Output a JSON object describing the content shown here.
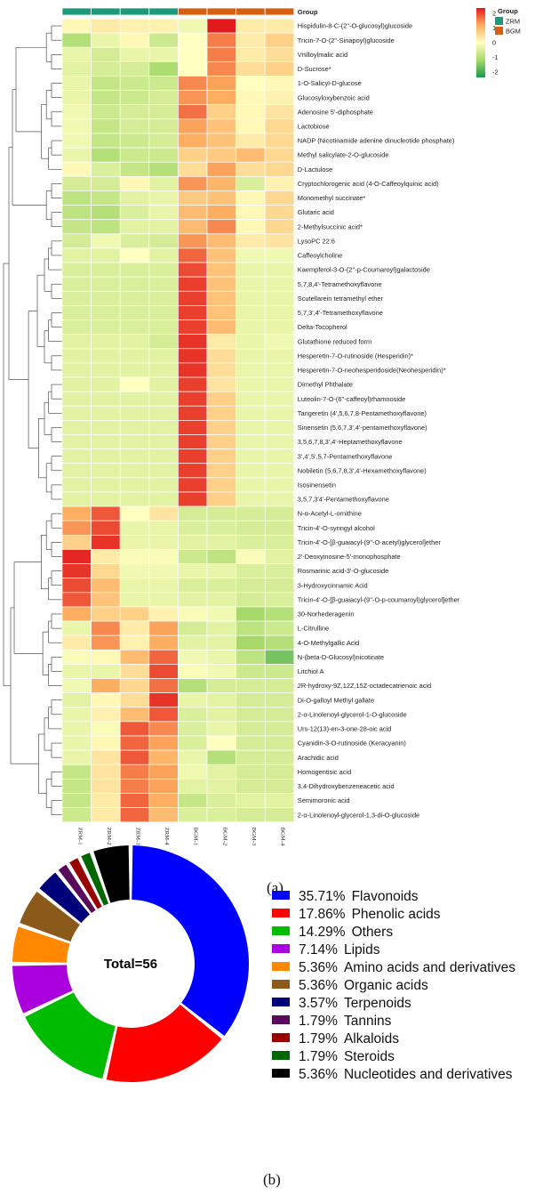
{
  "chart_data": [
    {
      "type": "heatmap",
      "panel_label": "(a)",
      "group_header": "Group",
      "samples": [
        "ZRM-1",
        "ZRM-2",
        "ZRM-3",
        "ZRM-4",
        "BGM-1",
        "BGM-2",
        "BGM-3",
        "BGM-4"
      ],
      "sample_groups": [
        "ZRM",
        "ZRM",
        "ZRM",
        "ZRM",
        "BGM",
        "BGM",
        "BGM",
        "BGM"
      ],
      "legend": {
        "title": "Group",
        "groups": [
          {
            "name": "ZRM",
            "color": "#1a9a79"
          },
          {
            "name": "BGM",
            "color": "#d95f0e"
          }
        ],
        "scale_ticks": [
          "2",
          "1",
          "0",
          "-1",
          "-2"
        ],
        "range": [
          -2.4,
          2.4
        ],
        "colors": [
          "#1a9850",
          "#a6d96a",
          "#ffffbf",
          "#fdae61",
          "#e31a1c"
        ]
      },
      "rows": [
        {
          "name": "Hispidulin-8-C-(2''-O-glucosyl)glucoside",
          "values": [
            0.1,
            0.3,
            0.2,
            0.2,
            -0.2,
            2.4,
            0.3,
            0.3
          ]
        },
        {
          "name": "Tricin-7-O-(2''-Sinapoyl)glucoside",
          "values": [
            -1.0,
            -0.3,
            0.1,
            -0.7,
            0.0,
            1.6,
            0.3,
            0.7
          ]
        },
        {
          "name": "Vnilloylmalic acid",
          "values": [
            -0.3,
            -0.6,
            -0.3,
            -0.3,
            0.0,
            1.6,
            0.3,
            0.5
          ]
        },
        {
          "name": "D-Sucrose*",
          "values": [
            -0.4,
            -0.6,
            -0.6,
            -1.1,
            0.0,
            1.5,
            0.5,
            0.7
          ]
        },
        {
          "name": "1-O-Salicyl-D-glucose",
          "values": [
            -0.3,
            -0.8,
            -0.7,
            -0.7,
            1.5,
            1.3,
            0.0,
            0.1
          ]
        },
        {
          "name": "Glucosyloxybenzoic acid",
          "values": [
            -0.3,
            -0.8,
            -0.7,
            -0.6,
            1.4,
            1.2,
            0.1,
            0.2
          ]
        },
        {
          "name": "Adenosine 5'-diphosphate",
          "values": [
            -0.2,
            -0.7,
            -0.6,
            -0.6,
            1.7,
            0.7,
            0.1,
            0.4
          ]
        },
        {
          "name": "Lactobiose",
          "values": [
            -0.2,
            -0.8,
            -0.6,
            -0.6,
            1.3,
            0.9,
            0.1,
            0.6
          ]
        },
        {
          "name": "NADP (Nicotinamide adenine dinucleotide phosphate)",
          "values": [
            -0.2,
            -0.8,
            -0.7,
            -0.6,
            1.2,
            0.9,
            0.3,
            0.6
          ]
        },
        {
          "name": "Methyl salicylate-2-O-glucoside",
          "values": [
            -0.3,
            -1.0,
            -0.7,
            -0.7,
            0.7,
            0.8,
            1.0,
            0.6
          ]
        },
        {
          "name": "D-Lactulose",
          "values": [
            0.1,
            -0.5,
            -0.8,
            -1.0,
            0.5,
            1.3,
            0.5,
            0.6
          ]
        },
        {
          "name": "Cryptochlorogenic acid (4-O-Caffeoylquinic acid)",
          "values": [
            -0.6,
            -0.6,
            0.1,
            -0.4,
            1.4,
            1.1,
            -0.5,
            0.2
          ]
        },
        {
          "name": "Monomethyl succinate*",
          "values": [
            -0.9,
            -0.8,
            -0.4,
            -0.3,
            0.8,
            0.9,
            0.1,
            0.6
          ]
        },
        {
          "name": "Glutaric acid",
          "values": [
            -0.9,
            -1.0,
            -0.5,
            -0.3,
            1.0,
            1.2,
            0.1,
            0.6
          ]
        },
        {
          "name": "2-Methylsuccinic acid*",
          "values": [
            -0.8,
            -0.9,
            -0.4,
            -0.4,
            1.0,
            1.5,
            0.1,
            0.6
          ]
        },
        {
          "name": "LysoPC 22:6",
          "values": [
            -0.6,
            -0.2,
            -0.5,
            -0.6,
            1.4,
            1.0,
            0.3,
            0.4
          ]
        },
        {
          "name": "Caffeoylcholine",
          "values": [
            -0.4,
            -0.4,
            0.0,
            -0.4,
            1.8,
            0.9,
            -0.2,
            -0.2
          ]
        },
        {
          "name": "Kaempferol-3-O-(2''-p-Coumaroyl)galactoside",
          "values": [
            -0.5,
            -0.5,
            -0.5,
            -0.5,
            2.0,
            0.9,
            -0.3,
            -0.3
          ]
        },
        {
          "name": "5,7,8,4'-Tetramethoxyflavone",
          "values": [
            -0.5,
            -0.5,
            -0.5,
            -0.5,
            2.1,
            0.9,
            -0.3,
            -0.3
          ]
        },
        {
          "name": "Scutellarein tetramethyl ether",
          "values": [
            -0.5,
            -0.5,
            -0.5,
            -0.5,
            2.1,
            0.9,
            -0.3,
            -0.3
          ]
        },
        {
          "name": "5,7,3',4'-Tetramethoxyflavone",
          "values": [
            -0.5,
            -0.5,
            -0.5,
            -0.5,
            2.1,
            0.9,
            -0.3,
            -0.3
          ]
        },
        {
          "name": "Delta-Tocopherol",
          "values": [
            -0.5,
            -0.5,
            -0.5,
            -0.5,
            2.1,
            1.0,
            -0.3,
            -0.3
          ]
        },
        {
          "name": "Glutathione reduced form",
          "values": [
            -0.4,
            -0.4,
            -0.4,
            -0.6,
            2.2,
            0.3,
            -0.3,
            -0.2
          ]
        },
        {
          "name": "Hesperetin-7-O-rutinoside (Hesperidin)*",
          "values": [
            -0.4,
            -0.4,
            -0.4,
            -0.4,
            2.2,
            0.5,
            -0.3,
            -0.3
          ]
        },
        {
          "name": "Hesperetin-7-O-neohesperidoside(Neohesperidin)*",
          "values": [
            -0.4,
            -0.4,
            -0.4,
            -0.4,
            2.2,
            0.5,
            -0.3,
            -0.3
          ]
        },
        {
          "name": "Dimethyl Phthalate",
          "values": [
            -0.4,
            -0.4,
            0.0,
            -0.4,
            2.1,
            0.4,
            -0.3,
            -0.3
          ]
        },
        {
          "name": "Luteolin-7-O-(6''-caffeoyl)rhamnoside",
          "values": [
            -0.4,
            -0.4,
            -0.4,
            -0.4,
            2.1,
            0.7,
            -0.3,
            -0.3
          ]
        },
        {
          "name": "Tangeretin (4',5,6,7,8-Pentamethoxyflavone)",
          "values": [
            -0.4,
            -0.4,
            -0.4,
            -0.4,
            2.1,
            0.7,
            -0.3,
            -0.3
          ]
        },
        {
          "name": "Sinensetin (5,6,7,3',4'-pentamethoxyflavone)",
          "values": [
            -0.4,
            -0.4,
            -0.4,
            -0.4,
            2.1,
            0.7,
            -0.3,
            -0.3
          ]
        },
        {
          "name": "3,5,6,7,8,3',4'-Heptamethoxyflavone",
          "values": [
            -0.4,
            -0.4,
            -0.4,
            -0.4,
            2.1,
            0.7,
            -0.3,
            -0.3
          ]
        },
        {
          "name": "3',4',5',5,7-Pentamethoxyflavone",
          "values": [
            -0.4,
            -0.4,
            -0.4,
            -0.4,
            2.1,
            0.7,
            -0.3,
            -0.3
          ]
        },
        {
          "name": "Nobiletin (5,6,7,8,3',4'-Hexamethoxyflavone)",
          "values": [
            -0.4,
            -0.4,
            -0.4,
            -0.4,
            2.1,
            0.7,
            -0.3,
            -0.3
          ]
        },
        {
          "name": "Isosinensetin",
          "values": [
            -0.4,
            -0.4,
            -0.4,
            -0.4,
            2.1,
            0.7,
            -0.3,
            -0.3
          ]
        },
        {
          "name": "3,5,7,3'4'-Pentamethoxyflavone",
          "values": [
            -0.4,
            -0.4,
            -0.4,
            -0.4,
            2.1,
            0.7,
            -0.3,
            -0.3
          ]
        },
        {
          "name": "N-α-Acetyl-L-ornithine",
          "values": [
            1.2,
            1.9,
            0.0,
            0.4,
            -0.6,
            -0.6,
            -0.6,
            -0.6
          ]
        },
        {
          "name": "Tricin-4'-O-syringyl alcohol",
          "values": [
            1.4,
            2.0,
            -0.3,
            -0.3,
            -0.5,
            -0.5,
            -0.6,
            -0.6
          ]
        },
        {
          "name": "Tricin-4'-O-[β-guaiacyl-(9''-O-acetyl)glycerol]ether",
          "values": [
            0.7,
            2.2,
            -0.3,
            -0.3,
            -0.4,
            -0.4,
            -0.5,
            -0.5
          ]
        },
        {
          "name": "2'-Deoxyinosine-5'-monophosphate",
          "values": [
            2.3,
            0.3,
            -0.1,
            -0.1,
            -0.7,
            -0.9,
            -0.1,
            -0.4
          ]
        },
        {
          "name": "Rosmarinic acid-3'-O-glucoside",
          "values": [
            2.2,
            0.6,
            -0.2,
            -0.2,
            -0.3,
            -0.3,
            -0.5,
            -0.5
          ]
        },
        {
          "name": "3-Hydroxycinnamic Acid",
          "values": [
            2.0,
            1.0,
            -0.3,
            -0.3,
            -0.5,
            -0.5,
            -0.6,
            -0.6
          ]
        },
        {
          "name": "Tricin-4'-O-[β-guaiacyl-(9''-O-p-coumaroyl)glycerol]ether",
          "values": [
            1.9,
            0.9,
            -0.3,
            -0.3,
            -0.4,
            -0.4,
            -0.6,
            -0.5
          ]
        },
        {
          "name": "30-Norhederagenin",
          "values": [
            1.2,
            0.7,
            0.7,
            0.2,
            -0.1,
            -0.2,
            -1.2,
            -1.0
          ]
        },
        {
          "name": "L-Citrulline",
          "values": [
            -0.3,
            1.5,
            0.3,
            1.3,
            -0.6,
            -0.4,
            -0.9,
            -0.7
          ]
        },
        {
          "name": "4-O-Methylgallic Acid",
          "values": [
            0.3,
            1.4,
            0.2,
            1.2,
            -0.4,
            -0.4,
            -1.2,
            -1.0
          ]
        },
        {
          "name": "N-(beta-D-Glucosyl)nicotinate",
          "values": [
            -0.1,
            0.1,
            1.0,
            1.8,
            -0.2,
            -0.3,
            -0.9,
            -1.6
          ]
        },
        {
          "name": "Litchiol A",
          "values": [
            -0.3,
            -0.3,
            0.5,
            2.0,
            -0.1,
            -0.2,
            -0.7,
            -0.7
          ]
        },
        {
          "name": "2R-hydroxy-9Z,12Z,15Z-octadecatrienoic acid",
          "values": [
            -0.2,
            1.2,
            0.6,
            1.7,
            -1.0,
            -0.6,
            -0.6,
            -0.6
          ]
        },
        {
          "name": "Di-O-galloyl Methyl gallate",
          "values": [
            -0.4,
            0.1,
            0.5,
            2.2,
            -0.3,
            -0.4,
            -0.6,
            -0.6
          ]
        },
        {
          "name": "2-α-Linolenoyl-glycerol-1-O-glucoside",
          "values": [
            -0.3,
            0.2,
            1.0,
            1.9,
            -0.5,
            -0.4,
            -0.6,
            -0.6
          ]
        },
        {
          "name": "Urs-12(13)-en-3-one-28-oic acid",
          "values": [
            -0.3,
            -0.1,
            1.9,
            1.5,
            -0.5,
            -0.3,
            -0.6,
            -0.6
          ]
        },
        {
          "name": "Cyanidin-3-O-rutinoside (Keracyanin)",
          "values": [
            -0.3,
            0.1,
            1.8,
            1.3,
            -0.5,
            0.0,
            -0.6,
            -0.6
          ]
        },
        {
          "name": "Arachidic acid",
          "values": [
            -0.3,
            0.4,
            1.9,
            1.1,
            -0.3,
            -1.0,
            -0.6,
            -0.6
          ]
        },
        {
          "name": "Homogentisic acid",
          "values": [
            -0.8,
            0.4,
            1.6,
            1.3,
            -0.2,
            -0.4,
            -0.6,
            -0.6
          ]
        },
        {
          "name": "3,4-Dihydroxybenzeneacetic acid",
          "values": [
            -0.8,
            0.4,
            1.6,
            1.3,
            -0.4,
            -0.4,
            -0.6,
            -0.6
          ]
        },
        {
          "name": "Semimoronic acid",
          "values": [
            -0.8,
            0.3,
            1.8,
            1.2,
            -0.8,
            -0.5,
            -0.4,
            -0.4
          ]
        },
        {
          "name": "2-α-Linolenoyl-glycerol-1,3-di-O-glucoside",
          "values": [
            -0.7,
            0.3,
            1.8,
            1.0,
            -0.5,
            -0.5,
            -0.6,
            -0.6
          ]
        }
      ]
    },
    {
      "type": "pie",
      "style": "donut",
      "panel_label": "(b)",
      "center_label": "Total=56",
      "slices": [
        {
          "label": "Flavonoids",
          "pct_label": "35.71%",
          "value": 35.71,
          "color": "#0000ff"
        },
        {
          "label": "Phenolic acids",
          "pct_label": "17.86%",
          "value": 17.86,
          "color": "#ff0000"
        },
        {
          "label": "Others",
          "pct_label": "14.29%",
          "value": 14.29,
          "color": "#00bb00"
        },
        {
          "label": "Lipids",
          "pct_label": "7.14%",
          "value": 7.14,
          "color": "#aa00dd"
        },
        {
          "label": "Amino acids and derivatives",
          "pct_label": "5.36%",
          "value": 5.36,
          "color": "#ff8800"
        },
        {
          "label": "Organic acids",
          "pct_label": "5.36%",
          "value": 5.36,
          "color": "#8b5a1a"
        },
        {
          "label": "Terpenoids",
          "pct_label": "3.57%",
          "value": 3.57,
          "color": "#00007a"
        },
        {
          "label": "Tannins",
          "pct_label": "1.79%",
          "value": 1.79,
          "color": "#5a0a5a"
        },
        {
          "label": "Alkaloids",
          "pct_label": "1.79%",
          "value": 1.79,
          "color": "#990000"
        },
        {
          "label": "Steroids",
          "pct_label": "1.79%",
          "value": 1.79,
          "color": "#006600"
        },
        {
          "label": "Nucleotides and derivatives",
          "pct_label": "5.36%",
          "value": 5.36,
          "color": "#000000"
        }
      ]
    }
  ]
}
